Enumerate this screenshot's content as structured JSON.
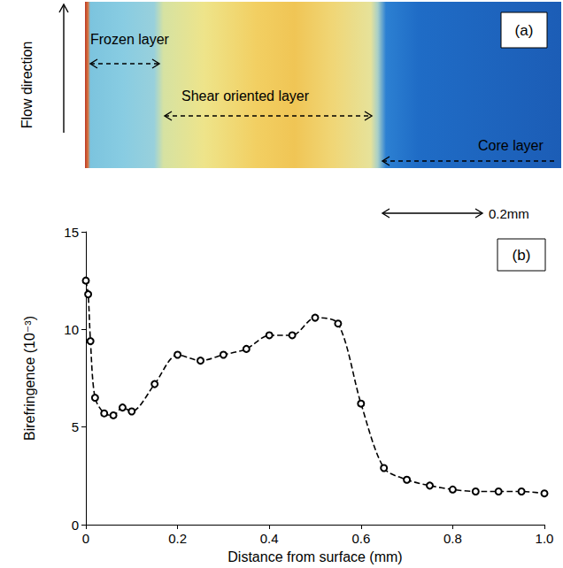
{
  "chart_data": {
    "type": "line",
    "image_panel": {
      "label": "(a)",
      "axis_label": "Flow direction",
      "layers": [
        "Frozen layer",
        "Shear oriented layer",
        "Core layer"
      ],
      "scale_bar": "0.2mm"
    },
    "panel_label": "(b)",
    "x_label": "Distance from surface (mm)",
    "y_label": "Birefringence (10⁻³)",
    "x": [
      0,
      0.005,
      0.01,
      0.02,
      0.04,
      0.06,
      0.08,
      0.1,
      0.15,
      0.2,
      0.25,
      0.3,
      0.35,
      0.4,
      0.45,
      0.5,
      0.55,
      0.6,
      0.65,
      0.7,
      0.75,
      0.8,
      0.85,
      0.9,
      0.95,
      1.0
    ],
    "series": [
      {
        "color": "#000000",
        "marker": "circle",
        "line_style": "dashed",
        "values": [
          12.5,
          11.8,
          9.4,
          6.5,
          5.7,
          5.6,
          6.0,
          5.8,
          7.2,
          8.7,
          8.4,
          8.7,
          9.0,
          9.7,
          9.7,
          10.6,
          10.3,
          6.2,
          2.9,
          2.3,
          2.0,
          1.8,
          1.7,
          1.7,
          1.7,
          1.6
        ]
      }
    ],
    "xlim": [
      0,
      1
    ],
    "xticks": [
      0,
      0.2,
      0.4,
      0.6,
      0.8,
      {
        "value": 1,
        "label": "1.0"
      }
    ],
    "ylim": [
      0,
      15
    ],
    "yticks": [
      0,
      5,
      10,
      15
    ],
    "grid": false
  }
}
